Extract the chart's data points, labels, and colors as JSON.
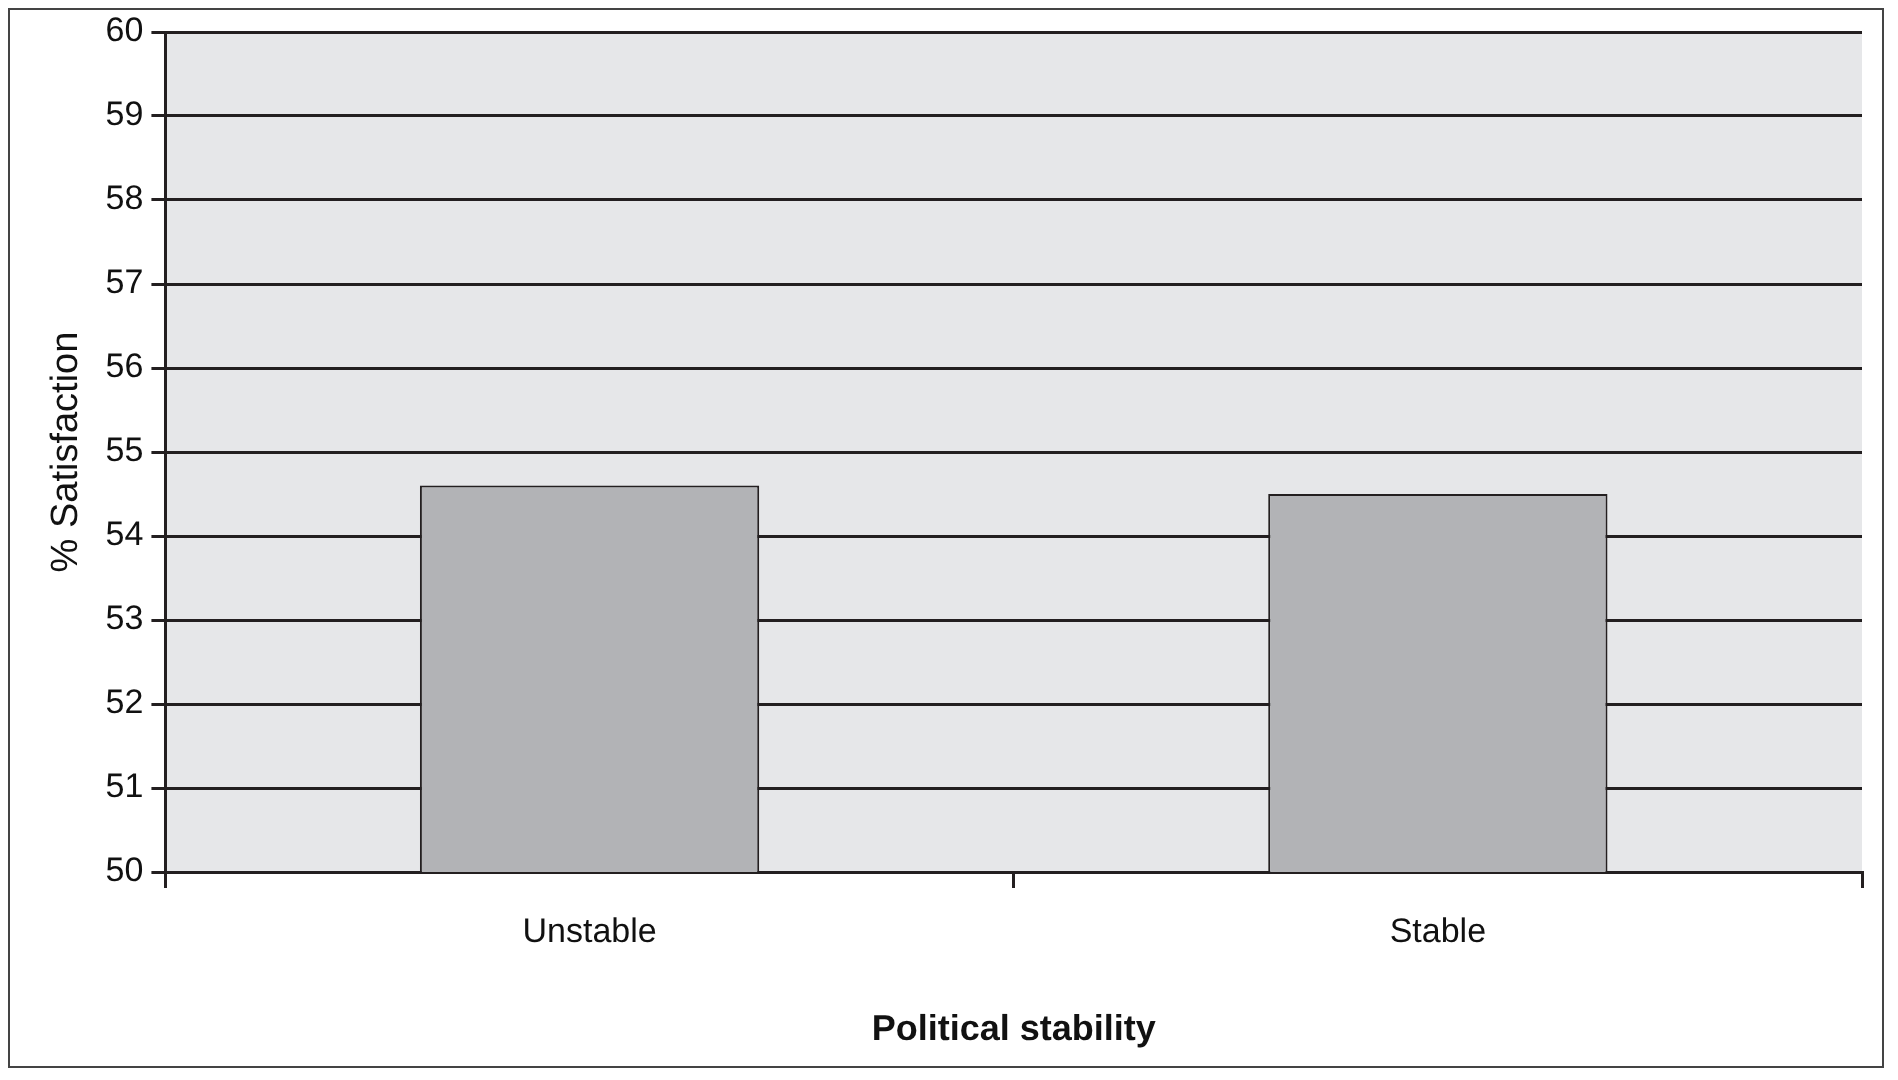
{
  "chart_data": {
    "type": "bar",
    "xlabel": "Political stability",
    "ylabel": "% Satisfaction",
    "categories": [
      "Unstable",
      "Stable"
    ],
    "series": [
      {
        "color": "#b2b3b6",
        "values": [
          54.6,
          54.5
        ]
      }
    ],
    "ylim": [
      50,
      60
    ],
    "yticks": [
      50,
      51,
      52,
      53,
      54,
      55,
      56,
      57,
      58,
      59,
      60
    ],
    "grid": "y",
    "legend": false
  }
}
